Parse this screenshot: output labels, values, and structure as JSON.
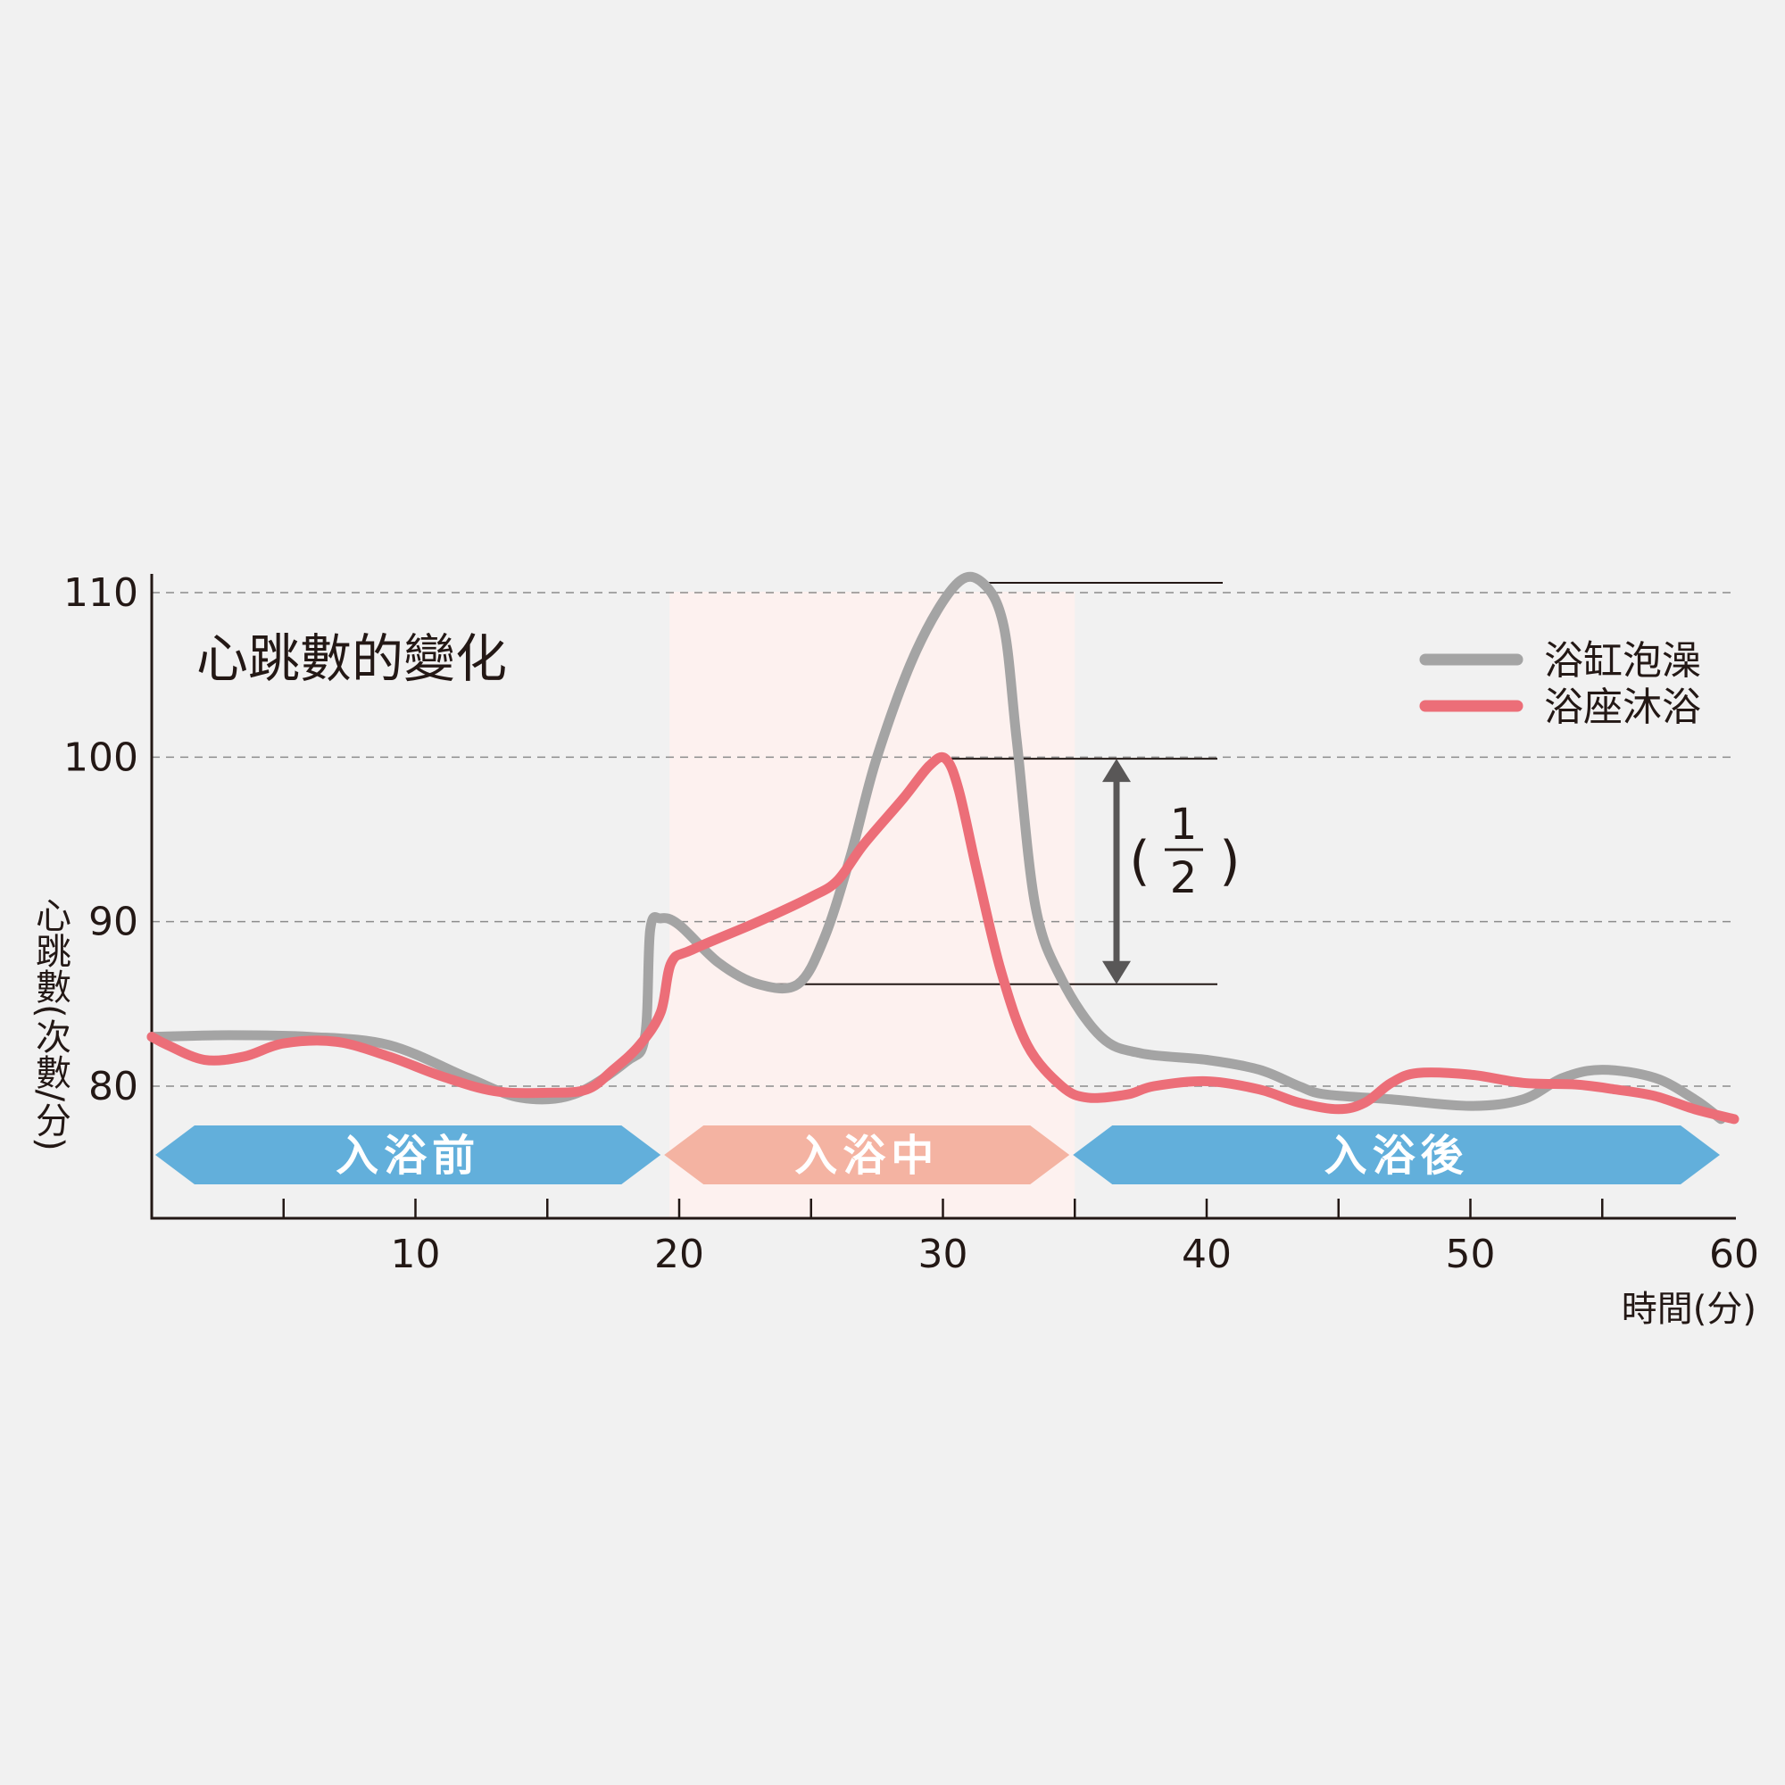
{
  "chart_data": {
    "type": "line",
    "title": "心跳數的變化",
    "xlabel": "時間(分)",
    "ylabel": "心跳數(次數/分)",
    "xlim": [
      0,
      60
    ],
    "ylim": [
      73,
      111
    ],
    "x_ticks": [
      10,
      20,
      30,
      40,
      50,
      60
    ],
    "y_ticks": [
      80,
      90,
      100,
      110
    ],
    "grid": "horizontal dashed",
    "legend_position": "top-right",
    "series": [
      {
        "name": "浴缸泡澡",
        "color": "#a4a4a4",
        "points": [
          [
            0,
            83
          ],
          [
            3,
            83.1
          ],
          [
            6,
            83
          ],
          [
            9,
            82.5
          ],
          [
            12,
            80.5
          ],
          [
            14,
            79.3
          ],
          [
            16,
            79.5
          ],
          [
            18,
            81.5
          ],
          [
            18.7,
            83
          ],
          [
            18.9,
            89.5
          ],
          [
            19.3,
            90.2
          ],
          [
            20,
            89.8
          ],
          [
            21.5,
            87.5
          ],
          [
            23,
            86.2
          ],
          [
            24.5,
            86.2
          ],
          [
            25.5,
            89
          ],
          [
            26.5,
            94
          ],
          [
            27.5,
            100
          ],
          [
            29,
            106.5
          ],
          [
            30.5,
            110.5
          ],
          [
            31.5,
            110.6
          ],
          [
            32.3,
            108
          ],
          [
            32.8,
            101
          ],
          [
            33.5,
            91
          ],
          [
            34.5,
            86.5
          ],
          [
            36,
            83
          ],
          [
            37.5,
            82
          ],
          [
            40,
            81.6
          ],
          [
            42,
            81
          ],
          [
            43.5,
            80
          ],
          [
            44.5,
            79.5
          ],
          [
            47,
            79.2
          ],
          [
            50,
            78.8
          ],
          [
            52,
            79.2
          ],
          [
            53.5,
            80.5
          ],
          [
            55,
            81
          ],
          [
            57,
            80.5
          ],
          [
            58.5,
            79.2
          ],
          [
            59.5,
            78
          ]
        ]
      },
      {
        "name": "浴座沐浴",
        "color": "#ec6e78",
        "points": [
          [
            0,
            83
          ],
          [
            0.6,
            82.5
          ],
          [
            2,
            81.6
          ],
          [
            3.5,
            81.8
          ],
          [
            5,
            82.6
          ],
          [
            7,
            82.7
          ],
          [
            9,
            81.8
          ],
          [
            11,
            80.6
          ],
          [
            13,
            79.7
          ],
          [
            15,
            79.6
          ],
          [
            16.5,
            79.8
          ],
          [
            17.5,
            81
          ],
          [
            18.5,
            82.5
          ],
          [
            19.3,
            84.5
          ],
          [
            19.7,
            87.5
          ],
          [
            20.5,
            88.3
          ],
          [
            23,
            90
          ],
          [
            25,
            91.5
          ],
          [
            26,
            92.5
          ],
          [
            27,
            94.7
          ],
          [
            28.5,
            97.5
          ],
          [
            29.5,
            99.5
          ],
          [
            30.1,
            99.9
          ],
          [
            30.6,
            98
          ],
          [
            31.3,
            93
          ],
          [
            32.2,
            87
          ],
          [
            33.2,
            82.5
          ],
          [
            34.5,
            80
          ],
          [
            35.5,
            79.3
          ],
          [
            37,
            79.5
          ],
          [
            38,
            80
          ],
          [
            40,
            80.3
          ],
          [
            42,
            79.8
          ],
          [
            43.5,
            79
          ],
          [
            45,
            78.6
          ],
          [
            46,
            79
          ],
          [
            47,
            80.2
          ],
          [
            48,
            80.8
          ],
          [
            50,
            80.7
          ],
          [
            52,
            80.2
          ],
          [
            54,
            80.1
          ],
          [
            55.5,
            79.8
          ],
          [
            57,
            79.4
          ],
          [
            58.5,
            78.6
          ],
          [
            60,
            78
          ]
        ]
      }
    ],
    "phases": [
      {
        "label": "入浴前",
        "start": 0,
        "end": 19.5,
        "color": "#62afdb"
      },
      {
        "label": "入浴中",
        "start": 19.5,
        "end": 35,
        "color": "#f4b3a2"
      },
      {
        "label": "入浴後",
        "start": 35,
        "end": 60,
        "color": "#62afdb"
      }
    ],
    "annotation": {
      "fraction_numerator": "1",
      "fraction_denominator": "2"
    }
  }
}
